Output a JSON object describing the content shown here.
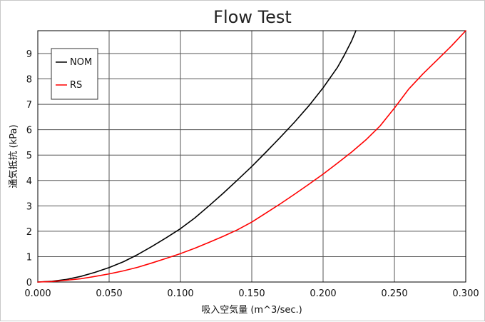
{
  "chart_data": {
    "type": "line",
    "title": "Flow Test",
    "xlabel": "吸入空気量 (m^3/sec.)",
    "ylabel": "通気抵抗 (kPa)",
    "xlim": [
      0.0,
      0.3
    ],
    "ylim": [
      0,
      9.9
    ],
    "x_ticks": [
      "0.000",
      "0.050",
      "0.100",
      "0.150",
      "0.200",
      "0.250",
      "0.300"
    ],
    "y_ticks": [
      "0",
      "1",
      "2",
      "3",
      "4",
      "5",
      "6",
      "7",
      "8",
      "9"
    ],
    "grid": true,
    "legend_position": "top-left",
    "series": [
      {
        "name": "NOM",
        "color": "#000000",
        "x": [
          0.0,
          0.01,
          0.02,
          0.03,
          0.04,
          0.05,
          0.06,
          0.07,
          0.08,
          0.09,
          0.1,
          0.11,
          0.12,
          0.13,
          0.14,
          0.15,
          0.16,
          0.17,
          0.18,
          0.19,
          0.2,
          0.21,
          0.215,
          0.22,
          0.223
        ],
        "y": [
          0.0,
          0.03,
          0.1,
          0.22,
          0.38,
          0.57,
          0.8,
          1.08,
          1.4,
          1.74,
          2.1,
          2.52,
          3.0,
          3.5,
          4.02,
          4.55,
          5.12,
          5.7,
          6.3,
          6.94,
          7.65,
          8.45,
          8.95,
          9.5,
          9.9
        ]
      },
      {
        "name": "RS",
        "color": "#ff0000",
        "x": [
          0.0,
          0.01,
          0.02,
          0.03,
          0.04,
          0.05,
          0.06,
          0.07,
          0.08,
          0.09,
          0.1,
          0.11,
          0.12,
          0.13,
          0.14,
          0.15,
          0.16,
          0.17,
          0.18,
          0.19,
          0.2,
          0.21,
          0.22,
          0.23,
          0.24,
          0.25,
          0.26,
          0.27,
          0.28,
          0.29,
          0.3
        ],
        "y": [
          0.0,
          0.02,
          0.07,
          0.13,
          0.22,
          0.32,
          0.44,
          0.58,
          0.75,
          0.93,
          1.12,
          1.33,
          1.56,
          1.8,
          2.06,
          2.36,
          2.72,
          3.08,
          3.46,
          3.85,
          4.25,
          4.68,
          5.12,
          5.6,
          6.15,
          6.85,
          7.6,
          8.2,
          8.75,
          9.3,
          9.9
        ]
      }
    ]
  }
}
